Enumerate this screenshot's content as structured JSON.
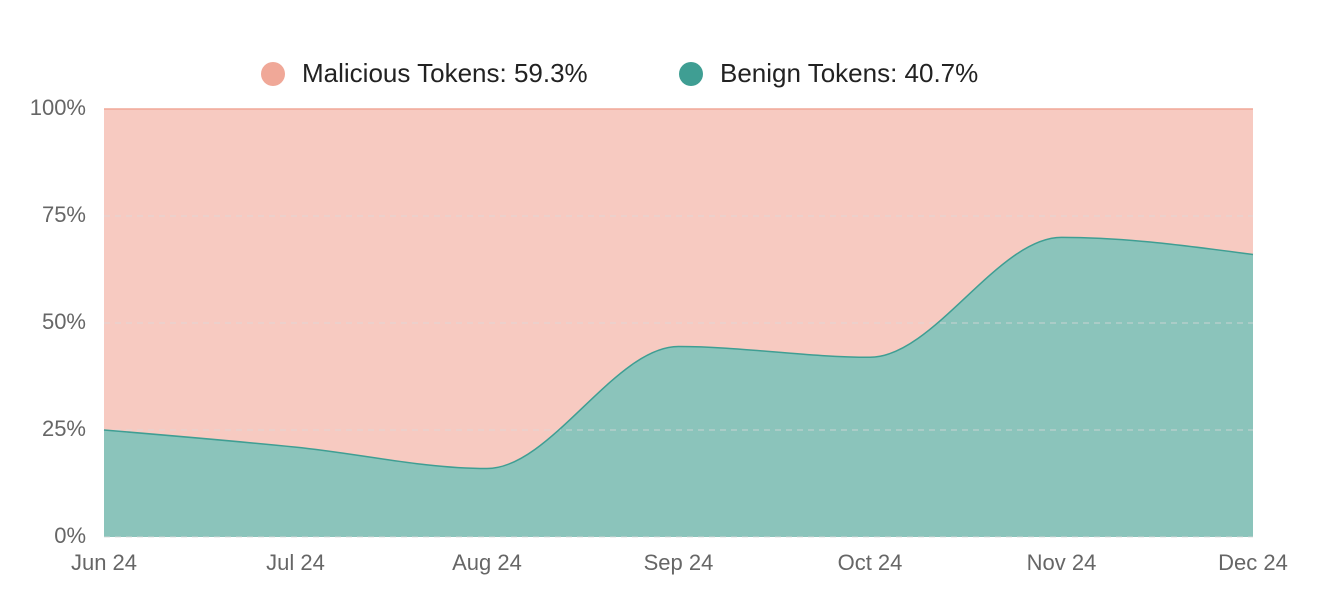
{
  "chart_data": {
    "type": "stacked_area_percent",
    "categories": [
      "Jun 24",
      "Jul 24",
      "Aug 24",
      "Sep 24",
      "Oct 24",
      "Nov 24",
      "Dec 24"
    ],
    "series": [
      {
        "name": "Malicious Tokens: 59.3%",
        "color": "#f0a898",
        "fill": "#f7cac1",
        "values": [
          75,
          79,
          84,
          55.5,
          58,
          30,
          34
        ]
      },
      {
        "name": "Benign Tokens: 40.7%",
        "color": "#3f9e93",
        "fill": "#8bc4bb",
        "values": [
          25,
          21,
          16,
          44.5,
          42,
          70,
          66
        ]
      }
    ],
    "ylim": [
      0,
      100
    ],
    "yticks": [
      {
        "value": 0,
        "label": "0%"
      },
      {
        "value": 25,
        "label": "25%"
      },
      {
        "value": 50,
        "label": "50%"
      },
      {
        "value": 75,
        "label": "75%"
      },
      {
        "value": 100,
        "label": "100%"
      }
    ],
    "grid": true
  }
}
